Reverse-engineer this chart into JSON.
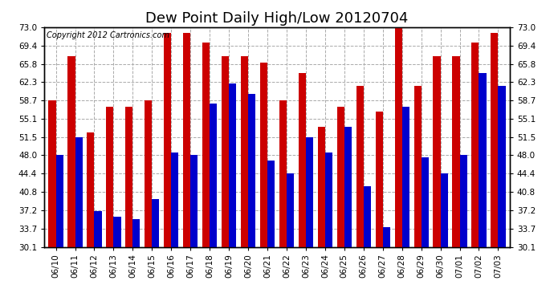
{
  "title": "Dew Point Daily High/Low 20120704",
  "copyright": "Copyright 2012 Cartronics.com",
  "dates": [
    "06/10",
    "06/11",
    "06/12",
    "06/13",
    "06/14",
    "06/15",
    "06/16",
    "06/17",
    "06/18",
    "06/19",
    "06/20",
    "06/21",
    "06/22",
    "06/23",
    "06/24",
    "06/25",
    "06/26",
    "06/27",
    "06/28",
    "06/29",
    "06/30",
    "07/01",
    "07/02",
    "07/03"
  ],
  "highs": [
    58.7,
    67.3,
    52.5,
    57.5,
    57.5,
    58.7,
    71.8,
    71.8,
    70.0,
    67.3,
    67.3,
    66.0,
    58.7,
    64.0,
    53.6,
    57.5,
    61.5,
    56.5,
    73.0,
    61.5,
    67.3,
    67.3,
    70.0,
    71.8
  ],
  "lows": [
    48.0,
    51.5,
    37.0,
    36.0,
    35.5,
    39.5,
    48.5,
    48.0,
    58.0,
    62.0,
    60.0,
    47.0,
    44.5,
    51.5,
    48.5,
    53.5,
    42.0,
    34.0,
    57.5,
    47.5,
    44.5,
    48.0,
    64.0,
    61.5
  ],
  "high_color": "#cc0000",
  "low_color": "#0000cc",
  "bg_color": "#ffffff",
  "grid_color": "#aaaaaa",
  "yticks": [
    30.1,
    33.7,
    37.2,
    40.8,
    44.4,
    48.0,
    51.5,
    55.1,
    58.7,
    62.3,
    65.8,
    69.4,
    73.0
  ],
  "ymin": 30.1,
  "ymax": 73.0,
  "title_fontsize": 13,
  "tick_fontsize": 7.5,
  "copyright_fontsize": 7
}
